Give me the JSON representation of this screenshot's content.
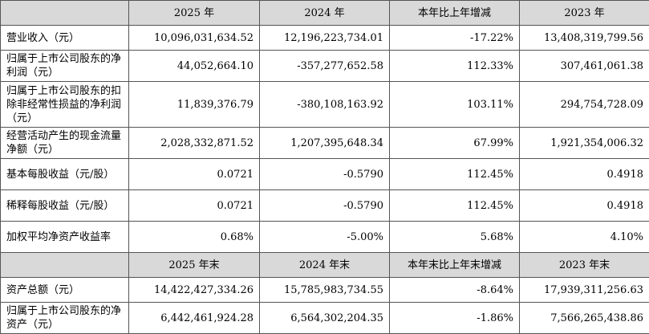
{
  "header1": [
    "",
    "2025 年",
    "2024 年",
    "本年比上年增减",
    "2023 年"
  ],
  "rows1": [
    {
      "label": "营业收入（元）",
      "v2025": "10,096,031,634.52",
      "v2024": "12,196,223,734.01",
      "change": "-17.22%",
      "v2023": "13,408,319,799.56"
    },
    {
      "label": "归属于上市公司股东的净利润（元）",
      "v2025": "44,052,664.10",
      "v2024": "-357,277,652.58",
      "change": "112.33%",
      "v2023": "307,461,061.38"
    },
    {
      "label": "归属于上市公司股东的扣除非经常性损益的净利润（元）",
      "v2025": "11,839,376.79",
      "v2024": "-380,108,163.92",
      "change": "103.11%",
      "v2023": "294,754,728.09"
    },
    {
      "label": "经营活动产生的现金流量净额（元）",
      "v2025": "2,028,332,871.52",
      "v2024": "1,207,395,648.34",
      "change": "67.99%",
      "v2023": "1,921,354,006.32"
    },
    {
      "label": "基本每股收益（元/股）",
      "v2025": "0.0721",
      "v2024": "-0.5790",
      "change": "112.45%",
      "v2023": "0.4918"
    },
    {
      "label": "稀释每股收益（元/股）",
      "v2025": "0.0721",
      "v2024": "-0.5790",
      "change": "112.45%",
      "v2023": "0.4918"
    },
    {
      "label": "加权平均净资产收益率",
      "v2025": "0.68%",
      "v2024": "-5.00%",
      "change": "5.68%",
      "v2023": "4.10%"
    }
  ],
  "header2": [
    "",
    "2025 年末",
    "2024 年末",
    "本年末比上年末增减",
    "2023 年末"
  ],
  "rows2": [
    {
      "label": "资产总额（元）",
      "v2025": "14,422,427,334.26",
      "v2024": "15,785,983,734.55",
      "change": "-8.64%",
      "v2023": "17,939,311,256.63"
    },
    {
      "label": "归属于上市公司股东的净资产（元）",
      "v2025": "6,442,461,924.28",
      "v2024": "6,564,302,204.35",
      "change": "-1.86%",
      "v2023": "7,566,265,438.86"
    }
  ]
}
